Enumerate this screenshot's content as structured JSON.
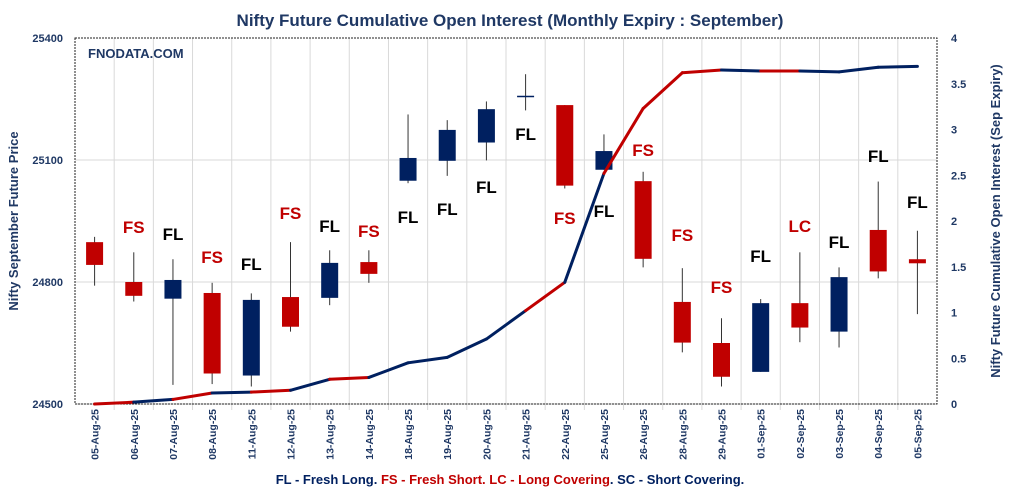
{
  "chart_data": {
    "type": "candlestick+line",
    "title": "Nifty Future Cumulative Open Interest (Monthly Expiry : September)",
    "watermark": "FNODATA.COM",
    "ylabel_left": "Nifty September Future Price",
    "ylabel_right": "Nifty Future Cumulative Open Interest (Sep Expiry)",
    "ylim_left": [
      24500,
      25400
    ],
    "yticks_left": [
      24500,
      24800,
      25100,
      25400
    ],
    "ylim_right": [
      0,
      4
    ],
    "yticks_right": [
      "0",
      "0.5",
      "1",
      "1.5",
      "2",
      "2.5",
      "3",
      "3.5",
      "4"
    ],
    "grid": true,
    "categories": [
      "05-Aug-25",
      "06-Aug-25",
      "07-Aug-25",
      "08-Aug-25",
      "11-Aug-25",
      "12-Aug-25",
      "13-Aug-25",
      "14-Aug-25",
      "18-Aug-25",
      "19-Aug-25",
      "20-Aug-25",
      "21-Aug-25",
      "22-Aug-25",
      "25-Aug-25",
      "26-Aug-25",
      "28-Aug-25",
      "29-Aug-25",
      "01-Sep-25",
      "02-Sep-25",
      "03-Sep-25",
      "04-Sep-25",
      "05-Sep-25"
    ],
    "open": [
      24898,
      24800,
      24759,
      24773,
      24570,
      24763,
      24761,
      24849,
      25049,
      25098,
      25143,
      25258,
      25235,
      25076,
      25048,
      24751,
      24650,
      24579,
      24748,
      24678,
      24928,
      24856
    ],
    "high": [
      24911,
      24873,
      24856,
      24798,
      24772,
      24898,
      24878,
      24878,
      25212,
      25198,
      25244,
      25311,
      25235,
      25163,
      25071,
      24834,
      24711,
      24758,
      24873,
      24836,
      25047,
      24926
    ],
    "low": [
      24791,
      24752,
      24547,
      24549,
      24543,
      24678,
      24743,
      24798,
      25043,
      25061,
      25099,
      25222,
      25030,
      25076,
      24836,
      24627,
      24543,
      24579,
      24652,
      24639,
      24809,
      24721
    ],
    "close": [
      24842,
      24766,
      24805,
      24575,
      24756,
      24690,
      24847,
      24820,
      25105,
      25174,
      25225,
      25258,
      25037,
      25122,
      24857,
      24651,
      24567,
      24748,
      24688,
      24812,
      24826,
      24846
    ],
    "labels": [
      "",
      "FS",
      "FL",
      "FS",
      "FL",
      "FS",
      "FL",
      "FS",
      "FL",
      "FL",
      "FL",
      "FL",
      "FS",
      "FL",
      "FS",
      "FS",
      "FS",
      "FL",
      "LC",
      "FL",
      "FL",
      "FL"
    ],
    "open_interest": [
      0.0,
      0.02,
      0.05,
      0.12,
      0.13,
      0.15,
      0.27,
      0.29,
      0.45,
      0.51,
      0.71,
      1.02,
      1.33,
      2.52,
      3.23,
      3.62,
      3.65,
      3.64,
      3.64,
      3.63,
      3.68,
      3.69
    ],
    "colors": {
      "up": "#002060",
      "down": "#c00000",
      "fl_label": "#000000",
      "fs_label": "#c00000",
      "line_blue": "#002060",
      "line_red": "#c00000"
    }
  },
  "legend": {
    "fl": "FL - Fresh Long.",
    "fs_lc": "FS - Fresh Short. LC - Long Covering",
    "dot": ".",
    "sc": "SC - Short Covering."
  }
}
